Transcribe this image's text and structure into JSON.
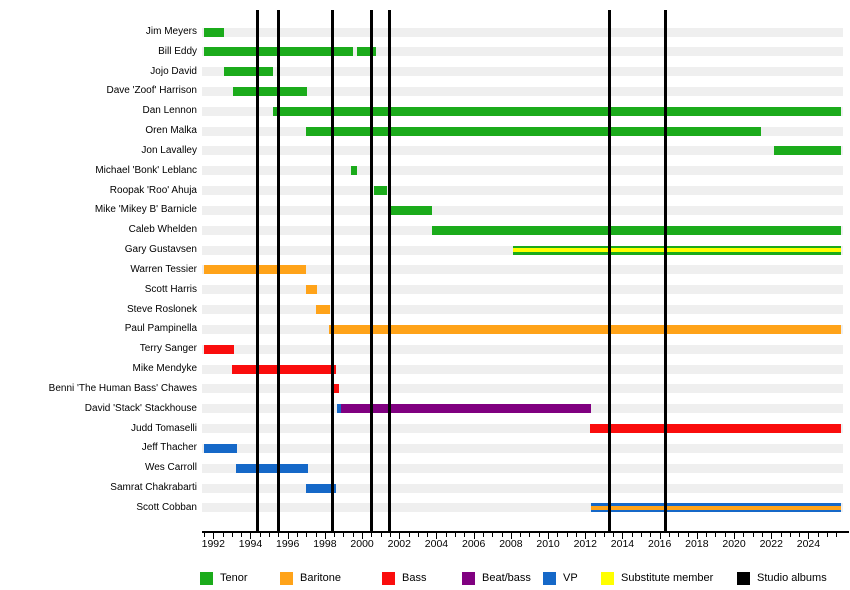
{
  "colors": {
    "tenor": "#1BAB1B",
    "baritone": "#FFA319",
    "bass": "#FA0D0D",
    "beat_bass": "#800080",
    "vp": "#1568C8",
    "substitute": "#FFFF00",
    "albums": "#000000",
    "row_band": "#EFEFEF"
  },
  "legend": [
    {
      "label": "Tenor",
      "color_key": "tenor"
    },
    {
      "label": "Baritone",
      "color_key": "baritone"
    },
    {
      "label": "Bass",
      "color_key": "bass"
    },
    {
      "label": "Beat/bass",
      "color_key": "beat_bass"
    },
    {
      "label": "VP",
      "color_key": "vp"
    },
    {
      "label": "Substitute member",
      "color_key": "substitute"
    },
    {
      "label": "Studio albums",
      "color_key": "albums"
    }
  ],
  "chart_data": {
    "type": "timeline",
    "title": "",
    "axis": {
      "start": 1991.5,
      "end": 2025.75,
      "tick_years": [
        1992,
        1994,
        1996,
        1998,
        2000,
        2002,
        2004,
        2006,
        2008,
        2010,
        2012,
        2014,
        2016,
        2018,
        2020,
        2022,
        2024
      ],
      "minor_tick_step": 0.5,
      "grid": false,
      "legend_position": "bottom"
    },
    "studio_album_years": [
      1994.4,
      1995.5,
      1998.4,
      2000.5,
      2001.5,
      2013.3,
      2016.3
    ],
    "members": [
      {
        "name": "Jim Meyers",
        "role": "Tenor",
        "segments": [
          {
            "from": 1991.5,
            "to": 1992.55,
            "color": "tenor"
          }
        ]
      },
      {
        "name": "Bill Eddy",
        "role": "Tenor",
        "segments": [
          {
            "from": 1991.5,
            "to": 1999.5,
            "color": "tenor"
          },
          {
            "from": 1999.7,
            "to": 2000.75,
            "color": "tenor"
          }
        ]
      },
      {
        "name": "Jojo David",
        "role": "Tenor",
        "segments": [
          {
            "from": 1992.6,
            "to": 1995.2,
            "color": "tenor"
          }
        ]
      },
      {
        "name": "Dave 'Zoof' Harrison",
        "role": "Tenor",
        "segments": [
          {
            "from": 1993.05,
            "to": 1997.05,
            "color": "tenor"
          }
        ]
      },
      {
        "name": "Dan Lennon",
        "role": "Tenor",
        "segments": [
          {
            "from": 1995.2,
            "to": 2025.75,
            "color": "tenor"
          }
        ]
      },
      {
        "name": "Oren Malka",
        "role": "Tenor",
        "segments": [
          {
            "from": 1997.0,
            "to": 2021.45,
            "color": "tenor"
          }
        ]
      },
      {
        "name": "Jon Lavalley",
        "role": "Tenor",
        "segments": [
          {
            "from": 2022.15,
            "to": 2025.75,
            "color": "tenor"
          }
        ]
      },
      {
        "name": "Michael 'Bonk' Leblanc",
        "role": "Tenor",
        "segments": [
          {
            "from": 1999.4,
            "to": 1999.75,
            "color": "tenor"
          }
        ]
      },
      {
        "name": "Roopak 'Roo' Ahuja",
        "role": "Tenor",
        "segments": [
          {
            "from": 2000.65,
            "to": 2001.35,
            "color": "tenor"
          }
        ]
      },
      {
        "name": "Mike 'Mikey B' Barnicle",
        "role": "Tenor",
        "segments": [
          {
            "from": 2001.45,
            "to": 2003.75,
            "color": "tenor"
          }
        ]
      },
      {
        "name": "Caleb Whelden",
        "role": "Tenor",
        "segments": [
          {
            "from": 2003.75,
            "to": 2025.75,
            "color": "tenor"
          }
        ]
      },
      {
        "name": "Gary Gustavsen",
        "role": "Tenor (substitute)",
        "segments": [
          {
            "from": 2008.1,
            "to": 2025.75,
            "color": "tenor",
            "stripe": "substitute"
          }
        ]
      },
      {
        "name": "Warren Tessier",
        "role": "Baritone",
        "segments": [
          {
            "from": 1991.5,
            "to": 1997.0,
            "color": "baritone"
          }
        ]
      },
      {
        "name": "Scott Harris",
        "role": "Baritone",
        "segments": [
          {
            "from": 1997.0,
            "to": 1997.55,
            "color": "baritone"
          }
        ]
      },
      {
        "name": "Steve Roslonek",
        "role": "Baritone",
        "segments": [
          {
            "from": 1997.5,
            "to": 1998.25,
            "color": "baritone"
          }
        ]
      },
      {
        "name": "Paul Pampinella",
        "role": "Baritone",
        "segments": [
          {
            "from": 1998.2,
            "to": 2025.75,
            "color": "baritone"
          }
        ]
      },
      {
        "name": "Terry Sanger",
        "role": "Bass",
        "segments": [
          {
            "from": 1991.5,
            "to": 1993.1,
            "color": "bass"
          }
        ]
      },
      {
        "name": "Mike Mendyke",
        "role": "Bass",
        "segments": [
          {
            "from": 1993.0,
            "to": 1998.6,
            "color": "bass"
          }
        ]
      },
      {
        "name": "Benni 'The Human Bass' Chawes",
        "role": "Bass",
        "segments": [
          {
            "from": 1998.5,
            "to": 1998.75,
            "color": "bass"
          }
        ]
      },
      {
        "name": "David 'Stack' Stackhouse",
        "role": "Beat/bass",
        "segments": [
          {
            "from": 1998.65,
            "to": 1998.85,
            "color": "vp"
          },
          {
            "from": 1998.85,
            "to": 2012.3,
            "color": "beat_bass"
          }
        ]
      },
      {
        "name": "Judd Tomaselli",
        "role": "Bass",
        "segments": [
          {
            "from": 2012.25,
            "to": 2025.75,
            "color": "bass"
          }
        ]
      },
      {
        "name": "Jeff Thacher",
        "role": "VP",
        "segments": [
          {
            "from": 1991.5,
            "to": 1993.3,
            "color": "vp"
          }
        ]
      },
      {
        "name": "Wes Carroll",
        "role": "VP",
        "segments": [
          {
            "from": 1993.2,
            "to": 1997.1,
            "color": "vp"
          }
        ]
      },
      {
        "name": "Samrat Chakrabarti",
        "role": "VP",
        "segments": [
          {
            "from": 1997.0,
            "to": 1998.6,
            "color": "vp"
          }
        ]
      },
      {
        "name": "Scott Cobban",
        "role": "VP (baritone substitute)",
        "segments": [
          {
            "from": 2012.3,
            "to": 2025.75,
            "color": "vp",
            "stripe": "baritone"
          }
        ]
      }
    ]
  }
}
